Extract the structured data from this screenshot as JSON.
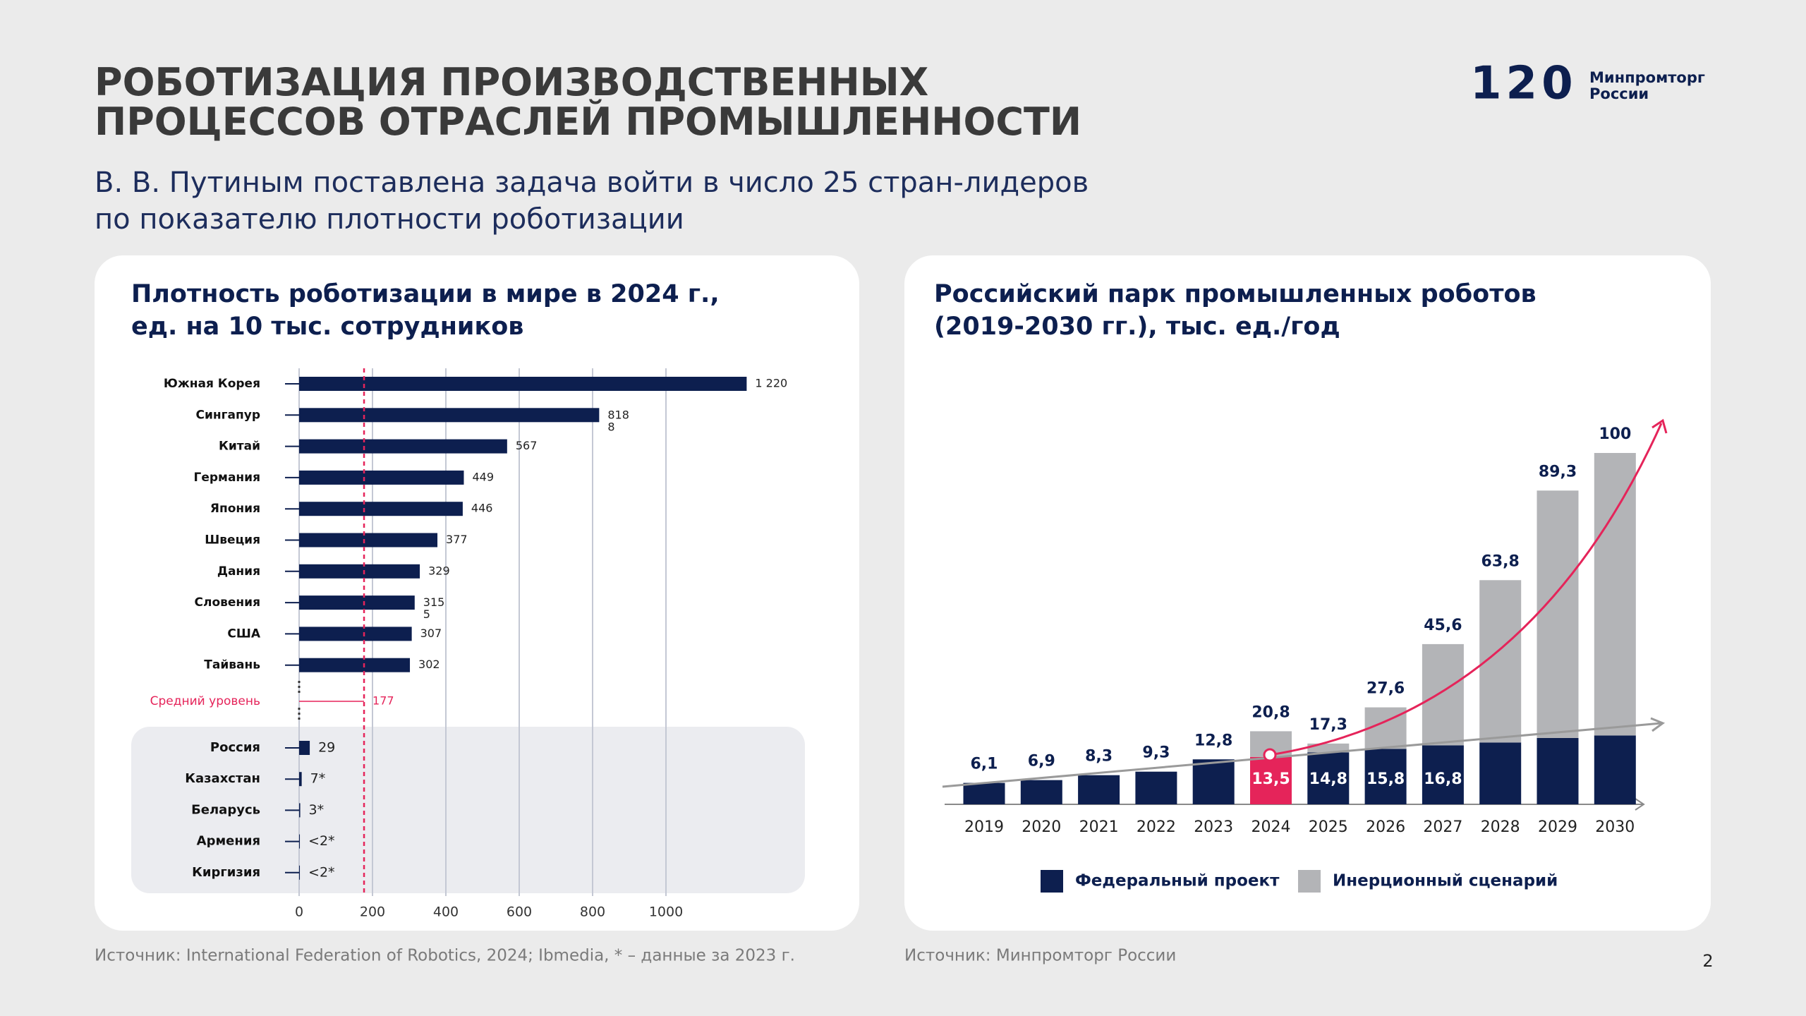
{
  "header": {
    "title": "РОБОТИЗАЦИЯ ПРОИЗВОДСТВЕННЫХ\nПРОЦЕССОВ ОТРАСЛЕЙ ПРОМЫШЛЕННОСТИ",
    "subtitle": "В. В. Путиным поставлена задача войти в число 25 стран-лидеров\nпо показателю плотности роботизации",
    "logo_number": "120",
    "logo_text": "Минпромторг\nРоссии"
  },
  "chart_data": [
    {
      "type": "hbar",
      "title": "Плотность роботизации в мире в 2024 г.,\nед. на 10 тыс. сотрудников",
      "categories": [
        "Южная Корея",
        "Сингапур",
        "Китай",
        "Германия",
        "Япония",
        "Швеция",
        "Дания",
        "Словения",
        "США",
        "Тайвань",
        "Россия",
        "Казахстан",
        "Беларусь",
        "Армения",
        "Киргизия"
      ],
      "values": [
        1220,
        818,
        567,
        449,
        446,
        377,
        329,
        315,
        307,
        302,
        29,
        7,
        3,
        2,
        2
      ],
      "value_labels": [
        "1 220",
        "818\n8",
        "567",
        "449",
        "446",
        "377",
        "329",
        "315\n5",
        "307",
        "302",
        "29",
        "7*",
        "3*",
        "<2*",
        "<2*"
      ],
      "color": "#0d1f4f",
      "average": {
        "label": "Средний уровень",
        "value": 177,
        "color": "#e5245a"
      },
      "xlim": [
        0,
        1300
      ],
      "xticks": [
        0,
        200,
        400,
        600,
        800,
        1000
      ],
      "grid": true,
      "source": "Источник: International Federation of Robotics, 2024; Ibmedia, * – данные за 2023 г."
    },
    {
      "type": "stacked_bar",
      "title": "Российский парк промышленных роботов\n(2019-2030 гг.), тыс. ед./год",
      "categories": [
        "2019",
        "2020",
        "2021",
        "2022",
        "2023",
        "2024",
        "2025",
        "2026",
        "2027",
        "2028",
        "2029",
        "2030"
      ],
      "series": [
        {
          "name": "Федеральный проект",
          "color": "#0d1f4f",
          "values": [
            6.1,
            6.9,
            8.3,
            9.3,
            12.8,
            13.5,
            14.8,
            15.8,
            16.8,
            17.6,
            18.9,
            19.6
          ],
          "value_labels": [
            null,
            null,
            null,
            null,
            null,
            "13,5",
            "14,8",
            "15,8",
            "16,8",
            null,
            null,
            null
          ]
        },
        {
          "name": "Инерционный сценарий",
          "color": "#b3b4b7",
          "values": [
            null,
            null,
            null,
            null,
            null,
            7.3,
            2.5,
            11.8,
            28.8,
            46.2,
            70.4,
            80.4
          ]
        }
      ],
      "totals": [
        6.1,
        6.9,
        8.3,
        9.3,
        12.8,
        20.8,
        17.3,
        27.6,
        45.6,
        63.8,
        89.3,
        100
      ],
      "total_labels": [
        "6,1",
        "6,9",
        "8,3",
        "9,3",
        "12,8",
        "20,8",
        "17,3",
        "27,6",
        "45,6",
        "63,8",
        "89,3",
        "100"
      ],
      "highlight": {
        "category": "2024",
        "color": "#e5245a"
      },
      "ylim": [
        0,
        100
      ],
      "legend": "bottom",
      "source": "Источник: Минпромторг России"
    }
  ],
  "page_number": "2"
}
